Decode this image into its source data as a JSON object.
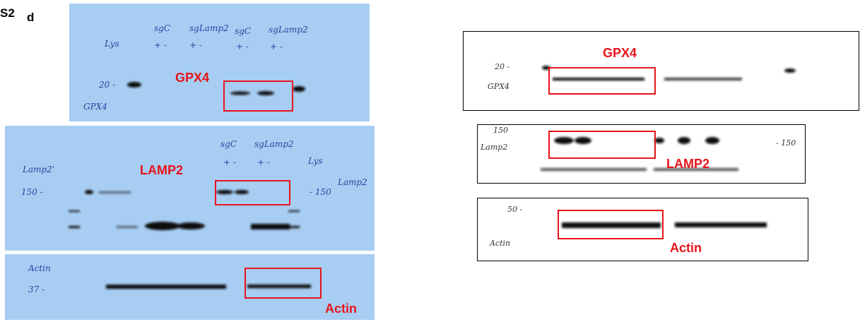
{
  "figure": {
    "label": "S2",
    "panel": "d"
  },
  "left_blots": [
    {
      "target": "GPX4",
      "handwriting": [
        "Lys",
        "sgC",
        "sgLamp2",
        "sgC",
        "sgLamp2",
        "+ -",
        "+ -",
        "+ -",
        "+ -",
        "20 -",
        "GPX4"
      ]
    },
    {
      "target": "LAMP2",
      "handwriting": [
        "sgC",
        "sgLamp2",
        "+ -",
        "+ -",
        "Lys",
        "Lamp2'",
        "150 -",
        "Lamp2",
        "- 150"
      ]
    },
    {
      "target": "Actin",
      "handwriting": [
        "Actin",
        "37 -"
      ]
    }
  ],
  "right_blots": [
    {
      "target": "GPX4",
      "handwriting": [
        "20 -",
        "GPX4"
      ]
    },
    {
      "target": "LAMP2",
      "handwriting": [
        "150",
        "Lamp2",
        "- 150"
      ]
    },
    {
      "target": "Actin",
      "handwriting": [
        "50 -",
        "Actin"
      ]
    }
  ]
}
